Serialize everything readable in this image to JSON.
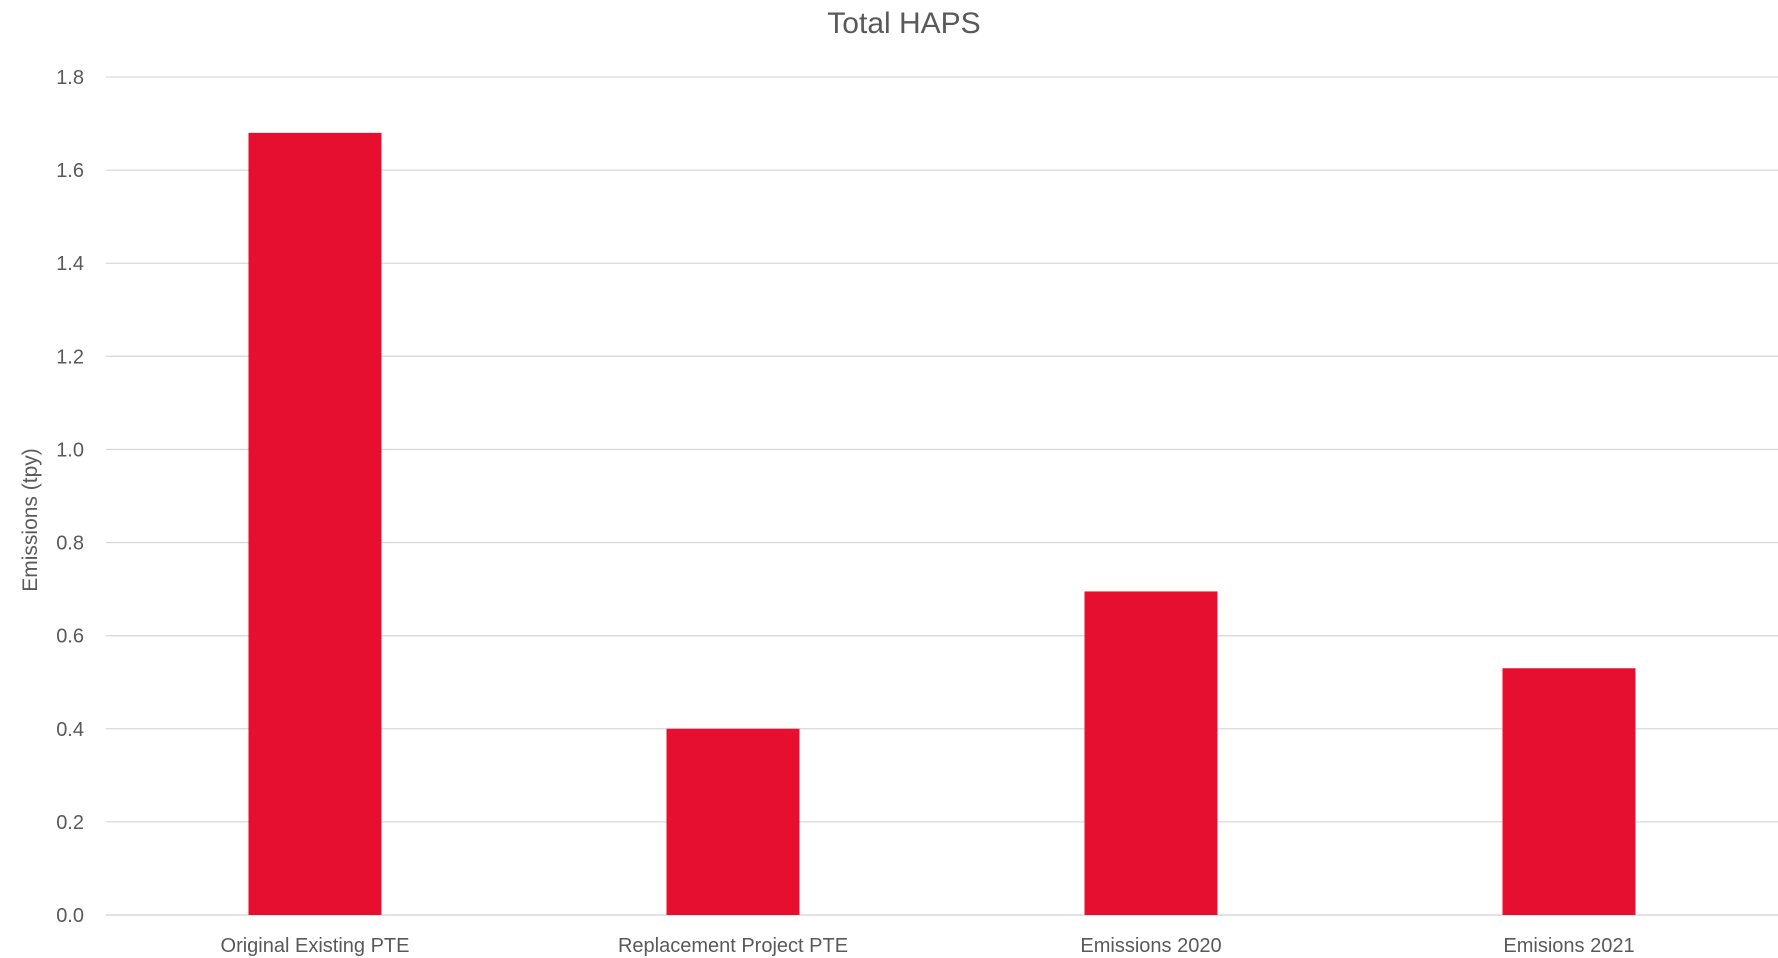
{
  "chart_data": {
    "type": "bar",
    "title": "Total HAPS",
    "xlabel": "",
    "ylabel": "Emissions (tpy)",
    "categories": [
      "Original Existing PTE",
      "Replacement Project PTE",
      "Emissions 2020",
      "Emisions 2021"
    ],
    "series": [
      {
        "values": [
          1.68,
          0.4,
          0.695,
          0.53
        ]
      }
    ],
    "ylim": [
      0,
      1.8
    ],
    "yticks": [
      "0.0",
      "0.2",
      "0.4",
      "0.6",
      "0.8",
      "1.0",
      "1.2",
      "1.4",
      "1.6",
      "1.8"
    ],
    "grid": true,
    "legend": "none",
    "colors": {
      "bar": "#e60f30",
      "grid": "#d9d9d9",
      "text": "#595959"
    }
  }
}
